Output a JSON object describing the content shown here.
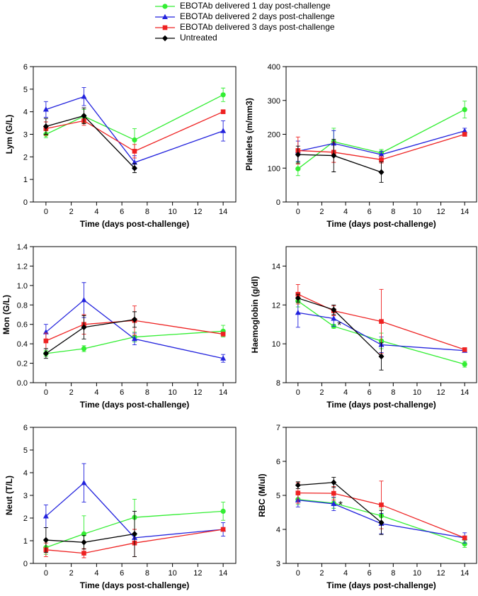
{
  "legend": {
    "items": [
      {
        "label": "EBOTAb delivered 1 day post-challenge",
        "color": "#33ee33",
        "marker": "circle"
      },
      {
        "label": "EBOTAb delivered 2 days post-challenge",
        "color": "#2222dd",
        "marker": "triangle"
      },
      {
        "label": "EBOTAb delivered 3 days post-challenge",
        "color": "#ee2222",
        "marker": "square"
      },
      {
        "label": "Untreated",
        "color": "#000000",
        "marker": "diamond"
      }
    ]
  },
  "chart_data": [
    {
      "type": "line",
      "ylabel": "Lym (G/L)",
      "xlabel": "Time (days post-challenge)",
      "xlim": [
        -1,
        15
      ],
      "ylim": [
        0,
        6
      ],
      "xticks": [
        0,
        2,
        4,
        6,
        8,
        10,
        12,
        14
      ],
      "yticks": [
        0,
        1,
        2,
        3,
        4,
        5,
        6
      ],
      "series": [
        {
          "name": "EBOTAb delivered 1 day post-challenge",
          "x": [
            0,
            3,
            7,
            14
          ],
          "y": [
            3.0,
            3.8,
            2.75,
            4.75
          ],
          "err": [
            0.15,
            0.3,
            0.5,
            0.3
          ]
        },
        {
          "name": "EBOTAb delivered 2 days post-challenge",
          "x": [
            0,
            3,
            7,
            14
          ],
          "y": [
            4.1,
            4.67,
            1.75,
            3.15
          ],
          "err": [
            0.35,
            0.4,
            0.3,
            0.45
          ]
        },
        {
          "name": "EBOTAb delivered 3 days post-challenge",
          "x": [
            0,
            3,
            7,
            14
          ],
          "y": [
            3.25,
            3.6,
            2.25,
            4.0
          ],
          "err": [
            0.3,
            0.2,
            0.3,
            0
          ]
        },
        {
          "name": "Untreated",
          "x": [
            0,
            3,
            7
          ],
          "y": [
            3.35,
            3.82,
            1.5
          ],
          "err": [
            0.35,
            0.35,
            0.2
          ]
        }
      ],
      "annotations": []
    },
    {
      "type": "line",
      "ylabel": "Platelets (m/mm3)",
      "xlabel": "Time (days post-challenge)",
      "xlim": [
        -1,
        15
      ],
      "ylim": [
        0,
        400
      ],
      "xticks": [
        0,
        2,
        4,
        6,
        8,
        10,
        12,
        14
      ],
      "yticks": [
        0,
        100,
        200,
        300,
        400
      ],
      "series": [
        {
          "name": "EBOTAb delivered 1 day post-challenge",
          "x": [
            0,
            3,
            7,
            14
          ],
          "y": [
            98,
            178,
            145,
            273
          ],
          "err": [
            20,
            40,
            10,
            25
          ]
        },
        {
          "name": "EBOTAb delivered 2 days post-challenge",
          "x": [
            0,
            3,
            7,
            14
          ],
          "y": [
            150,
            173,
            140,
            210
          ],
          "err": [
            30,
            38,
            10,
            8
          ]
        },
        {
          "name": "EBOTAb delivered 3 days post-challenge",
          "x": [
            0,
            3,
            7,
            14
          ],
          "y": [
            152,
            147,
            125,
            200
          ],
          "err": [
            40,
            30,
            10,
            0
          ]
        },
        {
          "name": "Untreated",
          "x": [
            0,
            3,
            7
          ],
          "y": [
            140,
            137,
            88
          ],
          "err": [
            25,
            48,
            30
          ]
        }
      ],
      "annotations": []
    },
    {
      "type": "line",
      "ylabel": "Mon (G/L)",
      "xlabel": "Time (days post-challenge)",
      "xlim": [
        -1,
        15
      ],
      "ylim": [
        0,
        1.4
      ],
      "xticks": [
        0,
        2,
        4,
        6,
        8,
        10,
        12,
        14
      ],
      "yticks": [
        "0.0",
        "0.2",
        "0.4",
        "0.6",
        "0.8",
        "1.0",
        "1.2",
        "1.4"
      ],
      "series": [
        {
          "name": "EBOTAb delivered 1 day post-challenge",
          "x": [
            0,
            3,
            7,
            14
          ],
          "y": [
            0.3,
            0.35,
            0.47,
            0.53
          ],
          "err": [
            0.03,
            0.03,
            0.05,
            0.06
          ]
        },
        {
          "name": "EBOTAb delivered 2 days post-challenge",
          "x": [
            0,
            3,
            7,
            14
          ],
          "y": [
            0.52,
            0.85,
            0.45,
            0.25
          ],
          "err": [
            0.08,
            0.18,
            0.06,
            0.04
          ]
        },
        {
          "name": "EBOTAb delivered 3 days post-challenge",
          "x": [
            0,
            3,
            7,
            14
          ],
          "y": [
            0.43,
            0.6,
            0.64,
            0.5
          ],
          "err": [
            0.08,
            0.1,
            0.15,
            0
          ]
        },
        {
          "name": "Untreated",
          "x": [
            0,
            3,
            7
          ],
          "y": [
            0.3,
            0.57,
            0.65
          ],
          "err": [
            0.05,
            0.12,
            0.08
          ]
        }
      ],
      "annotations": []
    },
    {
      "type": "line",
      "ylabel": "Haemoglobin (g/dl)",
      "xlabel": "Time (days post-challenge)",
      "xlim": [
        -1,
        15
      ],
      "ylim": [
        8,
        15
      ],
      "xticks": [
        0,
        2,
        4,
        6,
        8,
        10,
        12,
        14
      ],
      "yticks": [
        8,
        10,
        12,
        14
      ],
      "series": [
        {
          "name": "EBOTAb delivered 1 day post-challenge",
          "x": [
            0,
            3,
            7,
            14
          ],
          "y": [
            12.2,
            10.9,
            10.15,
            8.95
          ],
          "err": [
            0.3,
            0.1,
            0.4,
            0.15
          ]
        },
        {
          "name": "EBOTAb delivered 2 days post-challenge",
          "x": [
            0,
            3,
            7,
            14
          ],
          "y": [
            11.6,
            11.3,
            9.95,
            9.65
          ],
          "err": [
            0.75,
            0.4,
            0.4,
            0.05
          ]
        },
        {
          "name": "EBOTAb delivered 3 days post-challenge",
          "x": [
            0,
            3,
            7,
            14
          ],
          "y": [
            12.55,
            11.7,
            11.15,
            9.7
          ],
          "err": [
            0.5,
            0.25,
            1.65,
            0
          ]
        },
        {
          "name": "Untreated",
          "x": [
            0,
            3,
            7
          ],
          "y": [
            12.35,
            11.75,
            9.35
          ],
          "err": [
            0.2,
            0.25,
            0.7
          ]
        }
      ],
      "annotations": [
        {
          "text": "*",
          "x": 3.3,
          "y": 11.0
        }
      ]
    },
    {
      "type": "line",
      "ylabel": "Neut (T/L)",
      "xlabel": "Time (days post-challenge)",
      "xlim": [
        -1,
        15
      ],
      "ylim": [
        0,
        6
      ],
      "xticks": [
        0,
        2,
        4,
        6,
        8,
        10,
        12,
        14
      ],
      "yticks": [
        0,
        1,
        2,
        3,
        4,
        5,
        6
      ],
      "series": [
        {
          "name": "EBOTAb delivered 1 day post-challenge",
          "x": [
            0,
            3,
            7,
            14
          ],
          "y": [
            0.7,
            1.3,
            2.03,
            2.3
          ],
          "err": [
            0.3,
            0.8,
            0.8,
            0.4
          ]
        },
        {
          "name": "EBOTAb delivered 2 days post-challenge",
          "x": [
            0,
            3,
            7,
            14
          ],
          "y": [
            2.08,
            3.55,
            1.13,
            1.5
          ],
          "err": [
            0.5,
            0.85,
            0.2,
            0.3
          ]
        },
        {
          "name": "EBOTAb delivered 3 days post-challenge",
          "x": [
            0,
            3,
            7,
            14
          ],
          "y": [
            0.6,
            0.45,
            0.9,
            1.5
          ],
          "err": [
            0.3,
            0.2,
            0.6,
            0
          ]
        },
        {
          "name": "Untreated",
          "x": [
            0,
            3,
            7
          ],
          "y": [
            1.03,
            0.93,
            1.3
          ],
          "err": [
            0.55,
            0.3,
            1.0
          ]
        }
      ],
      "annotations": []
    },
    {
      "type": "line",
      "ylabel": "RBC (M/ul)",
      "xlabel": "Time (days post-challenge)",
      "xlim": [
        -1,
        15
      ],
      "ylim": [
        3,
        7
      ],
      "xticks": [
        0,
        2,
        4,
        6,
        8,
        10,
        12,
        14
      ],
      "yticks": [
        3,
        4,
        5,
        6,
        7
      ],
      "series": [
        {
          "name": "EBOTAb delivered 1 day post-challenge",
          "x": [
            0,
            3,
            7,
            14
          ],
          "y": [
            4.88,
            4.77,
            4.4,
            3.57
          ],
          "err": [
            0.15,
            0.15,
            0.2,
            0.1
          ]
        },
        {
          "name": "EBOTAb delivered 2 days post-challenge",
          "x": [
            0,
            3,
            7,
            14
          ],
          "y": [
            4.86,
            4.75,
            4.17,
            3.75
          ],
          "err": [
            0.2,
            0.2,
            0.3,
            0.15
          ]
        },
        {
          "name": "EBOTAb delivered 3 days post-challenge",
          "x": [
            0,
            3,
            7,
            14
          ],
          "y": [
            5.07,
            5.06,
            4.72,
            3.75
          ],
          "err": [
            0.3,
            0.2,
            0.7,
            0
          ]
        },
        {
          "name": "Untreated",
          "x": [
            0,
            3,
            7
          ],
          "y": [
            5.3,
            5.38,
            4.2
          ],
          "err": [
            0.1,
            0.15,
            0.35
          ]
        }
      ],
      "annotations": [
        {
          "text": "*",
          "x": 3.4,
          "y": 4.75
        }
      ]
    }
  ]
}
